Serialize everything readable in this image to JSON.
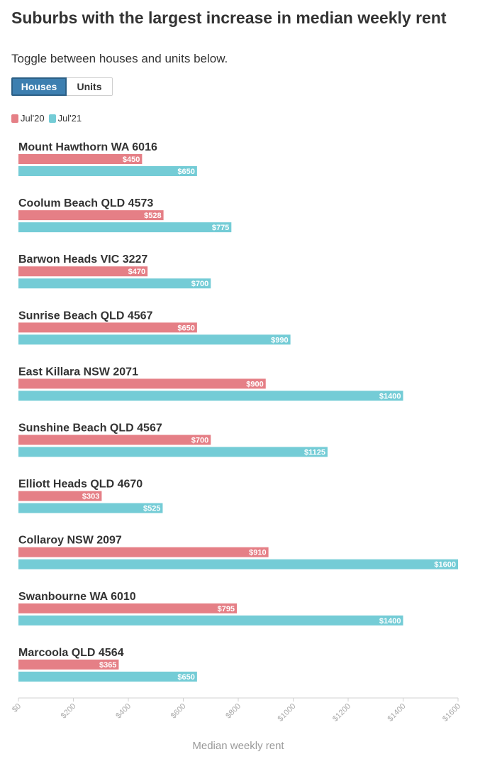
{
  "header": {
    "title": "Suburbs with the largest increase in median weekly rent",
    "subtitle": "Toggle between houses and units below."
  },
  "toggle": {
    "houses_label": "Houses",
    "units_label": "Units",
    "selected": "Houses"
  },
  "colors": {
    "jul20": "#e57f86",
    "jul21": "#74ccd6",
    "active_button": "#3d7fb0"
  },
  "chart_data": {
    "type": "bar",
    "orientation": "horizontal",
    "title": "Suburbs with the largest increase in median weekly rent",
    "xlabel": "Median weekly rent",
    "ylabel": "",
    "xlim": [
      0,
      1600
    ],
    "ticks": [
      0,
      200,
      400,
      600,
      800,
      1000,
      1200,
      1400,
      1600
    ],
    "tick_labels": [
      "$0",
      "$200",
      "$400",
      "$600",
      "$800",
      "$1000",
      "$1200",
      "$1400",
      "$1600"
    ],
    "legend_position": "top-left",
    "grid": false,
    "categories": [
      "Mount Hawthorn WA 6016",
      "Coolum Beach QLD 4573",
      "Barwon Heads VIC 3227",
      "Sunrise Beach QLD 4567",
      "East Killara NSW 2071",
      "Sunshine Beach QLD 4567",
      "Elliott Heads QLD 4670",
      "Collaroy NSW 2097",
      "Swanbourne WA 6010",
      "Marcoola QLD 4564"
    ],
    "series": [
      {
        "name": "Jul'20",
        "values": [
          450,
          528,
          470,
          650,
          900,
          700,
          303,
          910,
          795,
          365
        ],
        "labels": [
          "$450",
          "$528",
          "$470",
          "$650",
          "$900",
          "$700",
          "$303",
          "$910",
          "$795",
          "$365"
        ]
      },
      {
        "name": "Jul'21",
        "values": [
          650,
          775,
          700,
          990,
          1400,
          1125,
          525,
          1600,
          1400,
          650
        ],
        "labels": [
          "$650",
          "$775",
          "$700",
          "$990",
          "$1400",
          "$1125",
          "$525",
          "$1600",
          "$1400",
          "$650"
        ]
      }
    ]
  }
}
